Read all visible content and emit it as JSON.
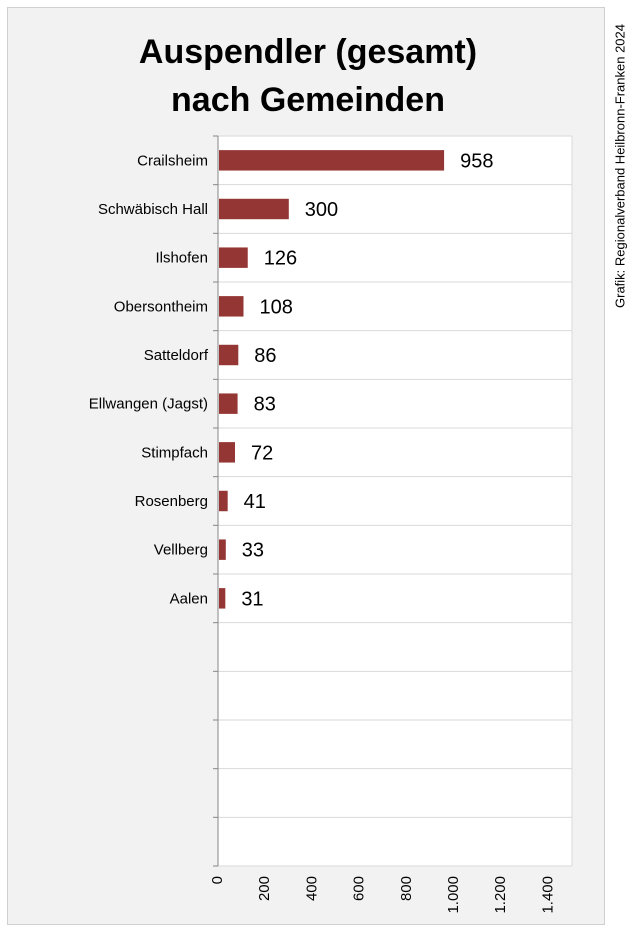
{
  "chart_data": {
    "type": "bar",
    "orientation": "horizontal",
    "title": "Auspendler (gesamt) nach Gemeinden",
    "title_lines": [
      "Auspendler (gesamt)",
      "nach Gemeinden"
    ],
    "categories": [
      "Crailsheim",
      "Schwäbisch Hall",
      "Ilshofen",
      "Obersontheim",
      "Satteldorf",
      "Ellwangen (Jagst)",
      "Stimpfach",
      "Rosenberg",
      "Vellberg",
      "Aalen"
    ],
    "values": [
      958,
      300,
      126,
      108,
      86,
      83,
      72,
      41,
      33,
      31
    ],
    "data_labels": [
      "958",
      "300",
      "126",
      "108",
      "86",
      "83",
      "72",
      "41",
      "33",
      "31"
    ],
    "x_ticks": [
      0,
      200,
      400,
      600,
      800,
      1000,
      1200,
      1400
    ],
    "x_tick_labels": [
      "0",
      "200",
      "400",
      "600",
      "800",
      "1.000",
      "1.200",
      "1.400"
    ],
    "xlim": [
      0,
      1500
    ],
    "category_slots": 15,
    "grid": true,
    "bar_color": "#943634",
    "source": "Grafik: Regionalverband Heilbronn-Franken 2024"
  }
}
